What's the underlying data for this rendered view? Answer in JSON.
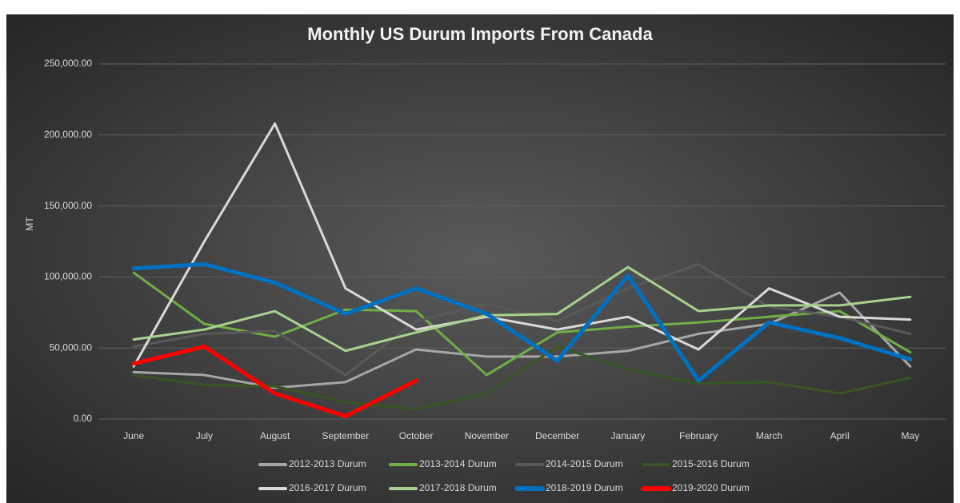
{
  "chart_data": {
    "type": "line",
    "title": "Monthly US Durum Imports From Canada",
    "y_label": "MT",
    "categories": [
      "June",
      "July",
      "August",
      "September",
      "October",
      "November",
      "December",
      "January",
      "February",
      "March",
      "April",
      "May"
    ],
    "ylim": [
      0,
      250000
    ],
    "yticks": [
      {
        "value": 0,
        "label": "0.00"
      },
      {
        "value": 50000,
        "label": "50,000.00"
      },
      {
        "value": 100000,
        "label": "100,000.00"
      },
      {
        "value": 150000,
        "label": "150,000.00"
      },
      {
        "value": 200000,
        "label": "200,000.00"
      },
      {
        "value": 250000,
        "label": "250,000.00"
      }
    ],
    "grid": true,
    "legend": "bottom",
    "series": [
      {
        "name": "2012-2013 Durum",
        "color": "#a6a6a6",
        "width": 3,
        "values": [
          33000,
          31000,
          22000,
          26000,
          49000,
          44000,
          44000,
          48000,
          60000,
          67000,
          89000,
          37000
        ]
      },
      {
        "name": "2013-2014 Durum",
        "color": "#70ad47",
        "width": 3,
        "values": [
          103000,
          67000,
          58000,
          77000,
          76000,
          31000,
          61000,
          65000,
          68000,
          72000,
          76000,
          47000
        ]
      },
      {
        "name": "2014-2015 Durum",
        "color": "#595959",
        "width": 3,
        "values": [
          51000,
          60000,
          62000,
          31000,
          69000,
          81000,
          69000,
          92000,
          109000,
          79000,
          72000,
          60000
        ]
      },
      {
        "name": "2015-2016 Durum",
        "color": "#375623",
        "width": 3,
        "values": [
          31000,
          24000,
          23000,
          12000,
          7000,
          18000,
          51000,
          35000,
          25000,
          26000,
          18000,
          29000
        ]
      },
      {
        "name": "2016-2017 Durum",
        "color": "#d9d9d9",
        "width": 3,
        "values": [
          37000,
          125000,
          208000,
          92000,
          63000,
          72000,
          63000,
          72000,
          49000,
          92000,
          72000,
          70000
        ]
      },
      {
        "name": "2017-2018 Durum",
        "color": "#a9d18e",
        "width": 3,
        "values": [
          56000,
          63000,
          76000,
          48000,
          61000,
          73000,
          74000,
          107000,
          76000,
          80000,
          80000,
          86000
        ]
      },
      {
        "name": "2018-2019 Durum",
        "color": "#0070c0",
        "width": 5,
        "values": [
          106000,
          109000,
          96000,
          74000,
          92000,
          74000,
          41000,
          101000,
          27000,
          68000,
          57000,
          42000
        ]
      },
      {
        "name": "2019-2020 Durum",
        "color": "#ff0000",
        "width": 5,
        "values": [
          39000,
          51000,
          18000,
          2000,
          27000,
          null,
          null,
          null,
          null,
          null,
          null,
          null
        ]
      }
    ]
  }
}
